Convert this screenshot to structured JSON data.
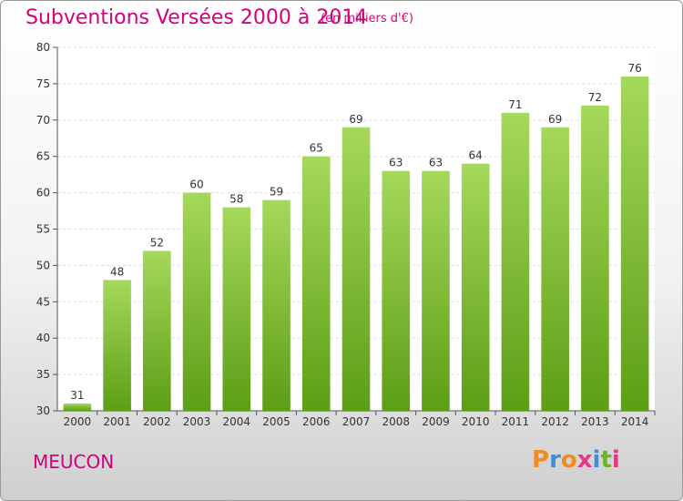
{
  "title": "Subventions Versées 2000 à 2014",
  "subtitle": "(en milliers d'€)",
  "commune": "MEUCON",
  "logo": {
    "letters": [
      "P",
      "r",
      "o",
      "x",
      "i",
      "t",
      "i"
    ],
    "colors": [
      "#f28c1e",
      "#3b8fd6",
      "#f28c1e",
      "#e8378a",
      "#3b8fd6",
      "#6bb22e",
      "#e8378a"
    ]
  },
  "colors": {
    "accent": "#d2007a",
    "bar_light": "#a6d85b",
    "bar_dark": "#5c9e16"
  },
  "chart_data": {
    "type": "bar",
    "categories": [
      "2000",
      "2001",
      "2002",
      "2003",
      "2004",
      "2005",
      "2006",
      "2007",
      "2008",
      "2009",
      "2010",
      "2011",
      "2012",
      "2013",
      "2014"
    ],
    "values": [
      31,
      48,
      52,
      60,
      58,
      59,
      65,
      69,
      63,
      63,
      64,
      71,
      69,
      72,
      76
    ],
    "ylim": [
      30,
      80
    ],
    "yticks": [
      30,
      35,
      40,
      45,
      50,
      55,
      60,
      65,
      70,
      75,
      80
    ],
    "grid": true
  }
}
